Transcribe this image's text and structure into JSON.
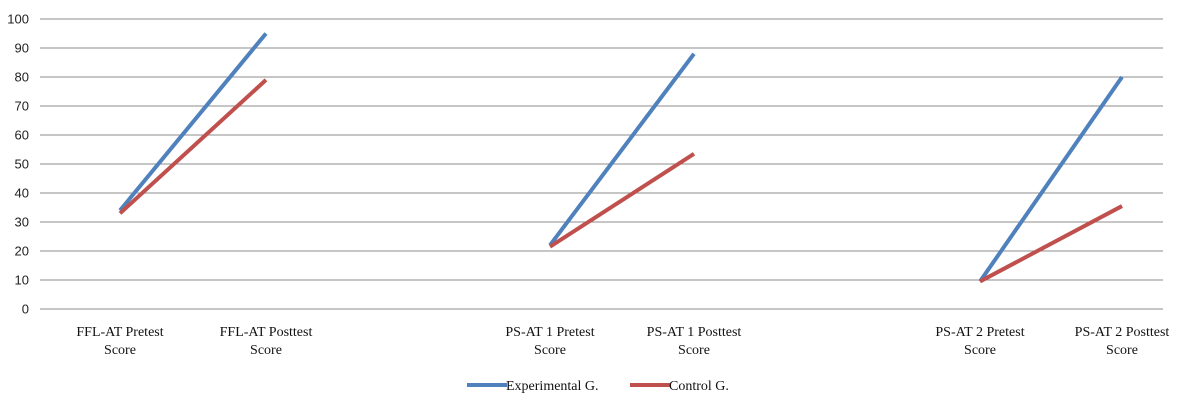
{
  "chart_data": {
    "type": "line",
    "title": "",
    "xlabel": "",
    "ylabel": "",
    "ylim": [
      0,
      100
    ],
    "yticks": [
      0,
      10,
      20,
      30,
      40,
      50,
      60,
      70,
      80,
      90,
      100
    ],
    "grid": true,
    "legend_position": "bottom-center",
    "groups": [
      {
        "labels": [
          [
            "FFL-AT Pretest",
            "Score"
          ],
          [
            "FFL-AT Posttest",
            "Score"
          ]
        ]
      },
      {
        "labels": [
          [
            "PS-AT 1 Pretest",
            "Score"
          ],
          [
            "PS-AT 1 Posttest",
            "Score"
          ]
        ]
      },
      {
        "labels": [
          [
            "PS-AT 2 Pretest",
            "Score"
          ],
          [
            "PS-AT 2 Posttest",
            "Score"
          ]
        ]
      }
    ],
    "series": [
      {
        "name": "Experimental G.",
        "color": "#4f81bd",
        "segments": [
          [
            34,
            95
          ],
          [
            22,
            88
          ],
          [
            9.5,
            80
          ]
        ]
      },
      {
        "name": "Control G.",
        "color": "#c0504d",
        "segments": [
          [
            33,
            79
          ],
          [
            21.5,
            53.5
          ],
          [
            9.5,
            35.5
          ]
        ]
      }
    ]
  }
}
